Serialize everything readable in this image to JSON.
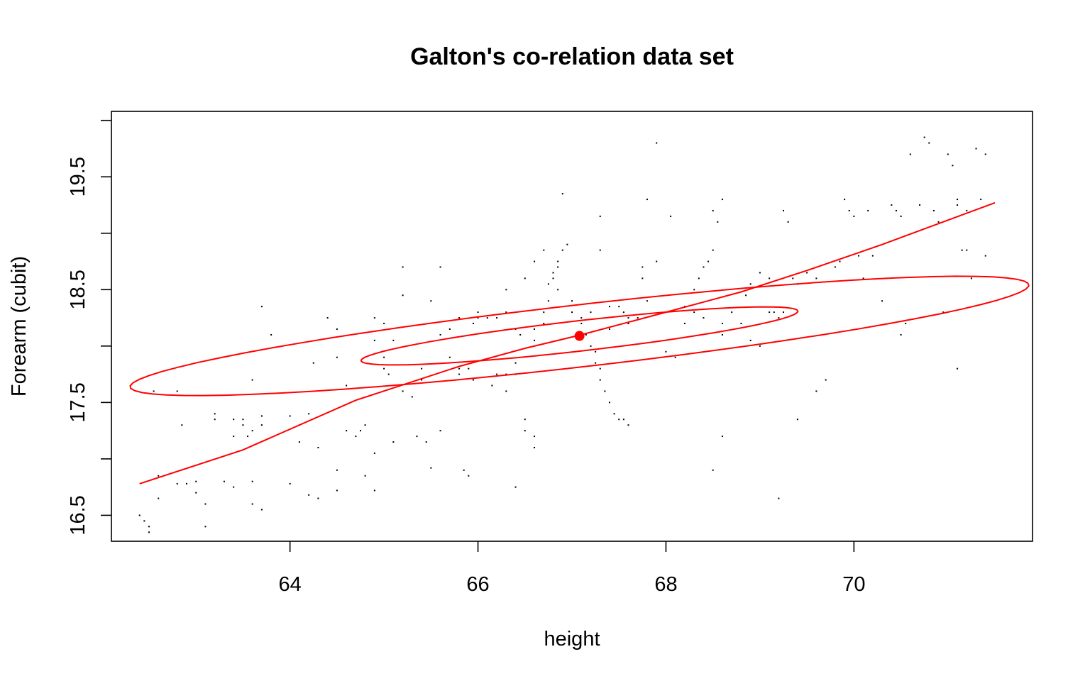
{
  "chart_data": {
    "type": "scatter",
    "title": "Galton's co-relation data  set",
    "xlabel": "height",
    "ylabel": "Forearm (cubit)",
    "xlim": [
      62.1,
      71.9
    ],
    "ylim": [
      16.27,
      20.08
    ],
    "x_ticks": [
      64,
      66,
      68,
      70
    ],
    "x_tick_labels": [
      "64",
      "66",
      "68",
      "70"
    ],
    "y_ticks": [
      16.5,
      17,
      17.5,
      18,
      18.5,
      19,
      19.5,
      20
    ],
    "y_tick_labels": [
      "16.5",
      "",
      "17.5",
      "",
      "18.5",
      "",
      "19.5",
      ""
    ],
    "grid": false,
    "colors": {
      "points": "#000000",
      "overlay": "#ff0000"
    },
    "center_point": {
      "x": 67.08,
      "y": 18.09
    },
    "regression_curve": [
      {
        "x": 62.4,
        "y": 16.78
      },
      {
        "x": 63.5,
        "y": 17.08
      },
      {
        "x": 64.7,
        "y": 17.52
      },
      {
        "x": 65.8,
        "y": 17.82
      },
      {
        "x": 66.5,
        "y": 17.98
      },
      {
        "x": 67.1,
        "y": 18.1
      },
      {
        "x": 68.0,
        "y": 18.3
      },
      {
        "x": 68.8,
        "y": 18.48
      },
      {
        "x": 69.5,
        "y": 18.67
      },
      {
        "x": 70.3,
        "y": 18.9
      },
      {
        "x": 71.5,
        "y": 19.27
      }
    ],
    "ellipses": [
      {
        "name": "inner",
        "cx": 67.08,
        "cy": 18.09,
        "rx": 2.44,
        "ry": 0.43,
        "angle_deg": 18
      },
      {
        "name": "outer",
        "cx": 67.08,
        "cy": 18.09,
        "rx": 5.02,
        "ry": 0.88,
        "angle_deg": 18
      }
    ],
    "points": [
      [
        62.4,
        16.5
      ],
      [
        62.45,
        16.45
      ],
      [
        62.5,
        16.4
      ],
      [
        62.5,
        16.35
      ],
      [
        62.55,
        17.6
      ],
      [
        62.6,
        16.85
      ],
      [
        62.6,
        16.65
      ],
      [
        62.8,
        17.6
      ],
      [
        62.8,
        16.78
      ],
      [
        62.85,
        17.3
      ],
      [
        62.9,
        16.78
      ],
      [
        63.0,
        16.7
      ],
      [
        63.0,
        16.8
      ],
      [
        63.1,
        16.6
      ],
      [
        63.1,
        16.4
      ],
      [
        63.2,
        17.35
      ],
      [
        63.2,
        17.4
      ],
      [
        63.3,
        16.8
      ],
      [
        63.4,
        16.75
      ],
      [
        63.4,
        17.2
      ],
      [
        63.4,
        17.35
      ],
      [
        63.5,
        17.3
      ],
      [
        63.5,
        17.35
      ],
      [
        63.55,
        17.2
      ],
      [
        63.6,
        16.6
      ],
      [
        63.6,
        16.8
      ],
      [
        63.6,
        17.7
      ],
      [
        63.7,
        17.38
      ],
      [
        63.7,
        17.3
      ],
      [
        63.6,
        17.25
      ],
      [
        63.7,
        16.55
      ],
      [
        63.7,
        18.35
      ],
      [
        63.8,
        18.1
      ],
      [
        64.0,
        17.38
      ],
      [
        64.0,
        16.78
      ],
      [
        64.1,
        17.3
      ],
      [
        64.1,
        17.15
      ],
      [
        64.2,
        17.4
      ],
      [
        64.25,
        17.85
      ],
      [
        64.2,
        16.68
      ],
      [
        64.3,
        16.65
      ],
      [
        64.4,
        18.25
      ],
      [
        64.5,
        17.9
      ],
      [
        64.5,
        18.15
      ],
      [
        64.5,
        16.72
      ],
      [
        64.6,
        17.65
      ],
      [
        64.6,
        17.25
      ],
      [
        64.7,
        17.2
      ],
      [
        64.75,
        17.25
      ],
      [
        64.8,
        17.3
      ],
      [
        64.8,
        16.85
      ],
      [
        64.9,
        16.72
      ],
      [
        64.9,
        18.25
      ],
      [
        65.0,
        18.2
      ],
      [
        65.0,
        17.9
      ],
      [
        65.05,
        17.75
      ],
      [
        65.1,
        17.15
      ],
      [
        65.2,
        17.6
      ],
      [
        65.3,
        17.55
      ],
      [
        65.4,
        17.7
      ],
      [
        65.2,
        18.7
      ],
      [
        65.35,
        17.2
      ],
      [
        65.45,
        17.15
      ],
      [
        65.5,
        18.4
      ],
      [
        65.6,
        18.7
      ],
      [
        65.6,
        18.1
      ],
      [
        65.6,
        17.25
      ],
      [
        65.7,
        17.9
      ],
      [
        65.8,
        17.8
      ],
      [
        65.8,
        17.75
      ],
      [
        65.85,
        16.9
      ],
      [
        65.9,
        17.8
      ],
      [
        65.95,
        17.7
      ],
      [
        66.0,
        18.3
      ],
      [
        66.0,
        18.25
      ],
      [
        66.1,
        18.25
      ],
      [
        66.15,
        17.65
      ],
      [
        66.2,
        17.75
      ],
      [
        66.3,
        17.6
      ],
      [
        66.3,
        17.75
      ],
      [
        66.4,
        17.75
      ],
      [
        66.4,
        17.85
      ],
      [
        66.5,
        17.35
      ],
      [
        66.5,
        17.25
      ],
      [
        66.6,
        17.2
      ],
      [
        66.6,
        17.1
      ],
      [
        66.6,
        18.05
      ],
      [
        66.6,
        18.15
      ],
      [
        66.7,
        18.2
      ],
      [
        66.7,
        18.3
      ],
      [
        66.75,
        18.4
      ],
      [
        66.75,
        18.55
      ],
      [
        66.8,
        18.6
      ],
      [
        66.8,
        18.65
      ],
      [
        66.85,
        18.7
      ],
      [
        66.85,
        18.75
      ],
      [
        66.9,
        18.85
      ],
      [
        66.95,
        18.9
      ],
      [
        67.0,
        18.4
      ],
      [
        67.0,
        18.3
      ],
      [
        67.1,
        18.25
      ],
      [
        67.1,
        18.2
      ],
      [
        67.15,
        18.1
      ],
      [
        67.2,
        18.0
      ],
      [
        67.25,
        17.95
      ],
      [
        67.25,
        17.85
      ],
      [
        67.3,
        17.8
      ],
      [
        67.3,
        17.7
      ],
      [
        67.35,
        17.6
      ],
      [
        67.4,
        17.5
      ],
      [
        67.45,
        17.4
      ],
      [
        67.5,
        17.35
      ],
      [
        67.55,
        17.35
      ],
      [
        67.6,
        17.3
      ],
      [
        67.4,
        18.35
      ],
      [
        67.5,
        18.35
      ],
      [
        67.55,
        18.3
      ],
      [
        67.6,
        18.25
      ],
      [
        67.7,
        18.25
      ],
      [
        67.75,
        18.6
      ],
      [
        67.75,
        18.7
      ],
      [
        67.8,
        19.3
      ],
      [
        67.9,
        19.8
      ],
      [
        67.9,
        18.75
      ],
      [
        68.0,
        17.95
      ],
      [
        68.1,
        17.9
      ],
      [
        68.2,
        18.2
      ],
      [
        68.3,
        18.3
      ],
      [
        68.35,
        18.6
      ],
      [
        68.4,
        18.7
      ],
      [
        68.45,
        18.75
      ],
      [
        68.5,
        18.85
      ],
      [
        68.5,
        19.2
      ],
      [
        68.6,
        19.3
      ],
      [
        68.6,
        18.2
      ],
      [
        68.6,
        18.1
      ],
      [
        68.7,
        18.3
      ],
      [
        68.8,
        18.2
      ],
      [
        68.85,
        18.45
      ],
      [
        68.9,
        18.55
      ],
      [
        68.9,
        18.05
      ],
      [
        69.0,
        18.0
      ],
      [
        69.1,
        18.3
      ],
      [
        69.15,
        18.3
      ],
      [
        69.2,
        18.25
      ],
      [
        69.25,
        19.2
      ],
      [
        69.3,
        19.1
      ],
      [
        69.35,
        18.6
      ],
      [
        69.4,
        18.55
      ],
      [
        69.5,
        18.65
      ],
      [
        69.6,
        18.6
      ],
      [
        69.6,
        17.6
      ],
      [
        69.7,
        17.7
      ],
      [
        69.8,
        18.7
      ],
      [
        69.85,
        18.75
      ],
      [
        69.9,
        19.3
      ],
      [
        69.95,
        19.2
      ],
      [
        70.0,
        19.15
      ],
      [
        70.05,
        18.8
      ],
      [
        70.1,
        18.6
      ],
      [
        70.15,
        19.2
      ],
      [
        70.2,
        18.8
      ],
      [
        70.3,
        18.4
      ],
      [
        70.4,
        19.25
      ],
      [
        70.45,
        19.2
      ],
      [
        70.5,
        19.15
      ],
      [
        70.5,
        18.1
      ],
      [
        70.55,
        18.2
      ],
      [
        70.6,
        19.7
      ],
      [
        70.7,
        19.25
      ],
      [
        70.75,
        19.85
      ],
      [
        70.8,
        19.8
      ],
      [
        70.85,
        19.2
      ],
      [
        70.9,
        19.1
      ],
      [
        70.95,
        18.3
      ],
      [
        71.0,
        19.7
      ],
      [
        71.05,
        19.6
      ],
      [
        71.1,
        19.3
      ],
      [
        71.1,
        19.25
      ],
      [
        71.15,
        18.85
      ],
      [
        71.2,
        18.85
      ],
      [
        71.2,
        19.2
      ],
      [
        71.25,
        18.6
      ],
      [
        71.3,
        19.75
      ],
      [
        71.35,
        19.3
      ],
      [
        71.4,
        18.8
      ],
      [
        71.4,
        19.7
      ],
      [
        71.1,
        17.8
      ],
      [
        68.5,
        16.9
      ],
      [
        69.2,
        16.65
      ],
      [
        68.6,
        17.2
      ],
      [
        69.4,
        17.35
      ],
      [
        66.4,
        16.75
      ],
      [
        65.9,
        16.85
      ],
      [
        65.5,
        16.92
      ],
      [
        64.5,
        16.9
      ],
      [
        64.3,
        17.1
      ],
      [
        65.0,
        17.8
      ],
      [
        65.4,
        17.8
      ],
      [
        64.9,
        17.05
      ],
      [
        66.3,
        18.5
      ],
      [
        66.5,
        18.6
      ],
      [
        66.6,
        18.75
      ],
      [
        66.3,
        18.3
      ],
      [
        66.2,
        18.25
      ],
      [
        66.45,
        18.1
      ],
      [
        66.4,
        18.15
      ],
      [
        65.95,
        18.2
      ],
      [
        65.7,
        18.15
      ],
      [
        65.8,
        18.25
      ],
      [
        65.2,
        18.45
      ],
      [
        65.1,
        18.05
      ],
      [
        64.9,
        18.05
      ],
      [
        66.7,
        18.85
      ],
      [
        66.85,
        18.5
      ],
      [
        67.2,
        18.3
      ],
      [
        67.3,
        18.85
      ],
      [
        67.4,
        18.15
      ],
      [
        67.6,
        18.2
      ],
      [
        67.8,
        18.4
      ],
      [
        67.3,
        19.15
      ],
      [
        66.9,
        19.35
      ],
      [
        68.05,
        19.15
      ],
      [
        68.55,
        19.1
      ],
      [
        69.25,
        18.3
      ],
      [
        69.0,
        18.65
      ],
      [
        69.1,
        18.6
      ],
      [
        68.2,
        18.35
      ],
      [
        68.3,
        18.5
      ],
      [
        68.4,
        18.25
      ]
    ]
  }
}
